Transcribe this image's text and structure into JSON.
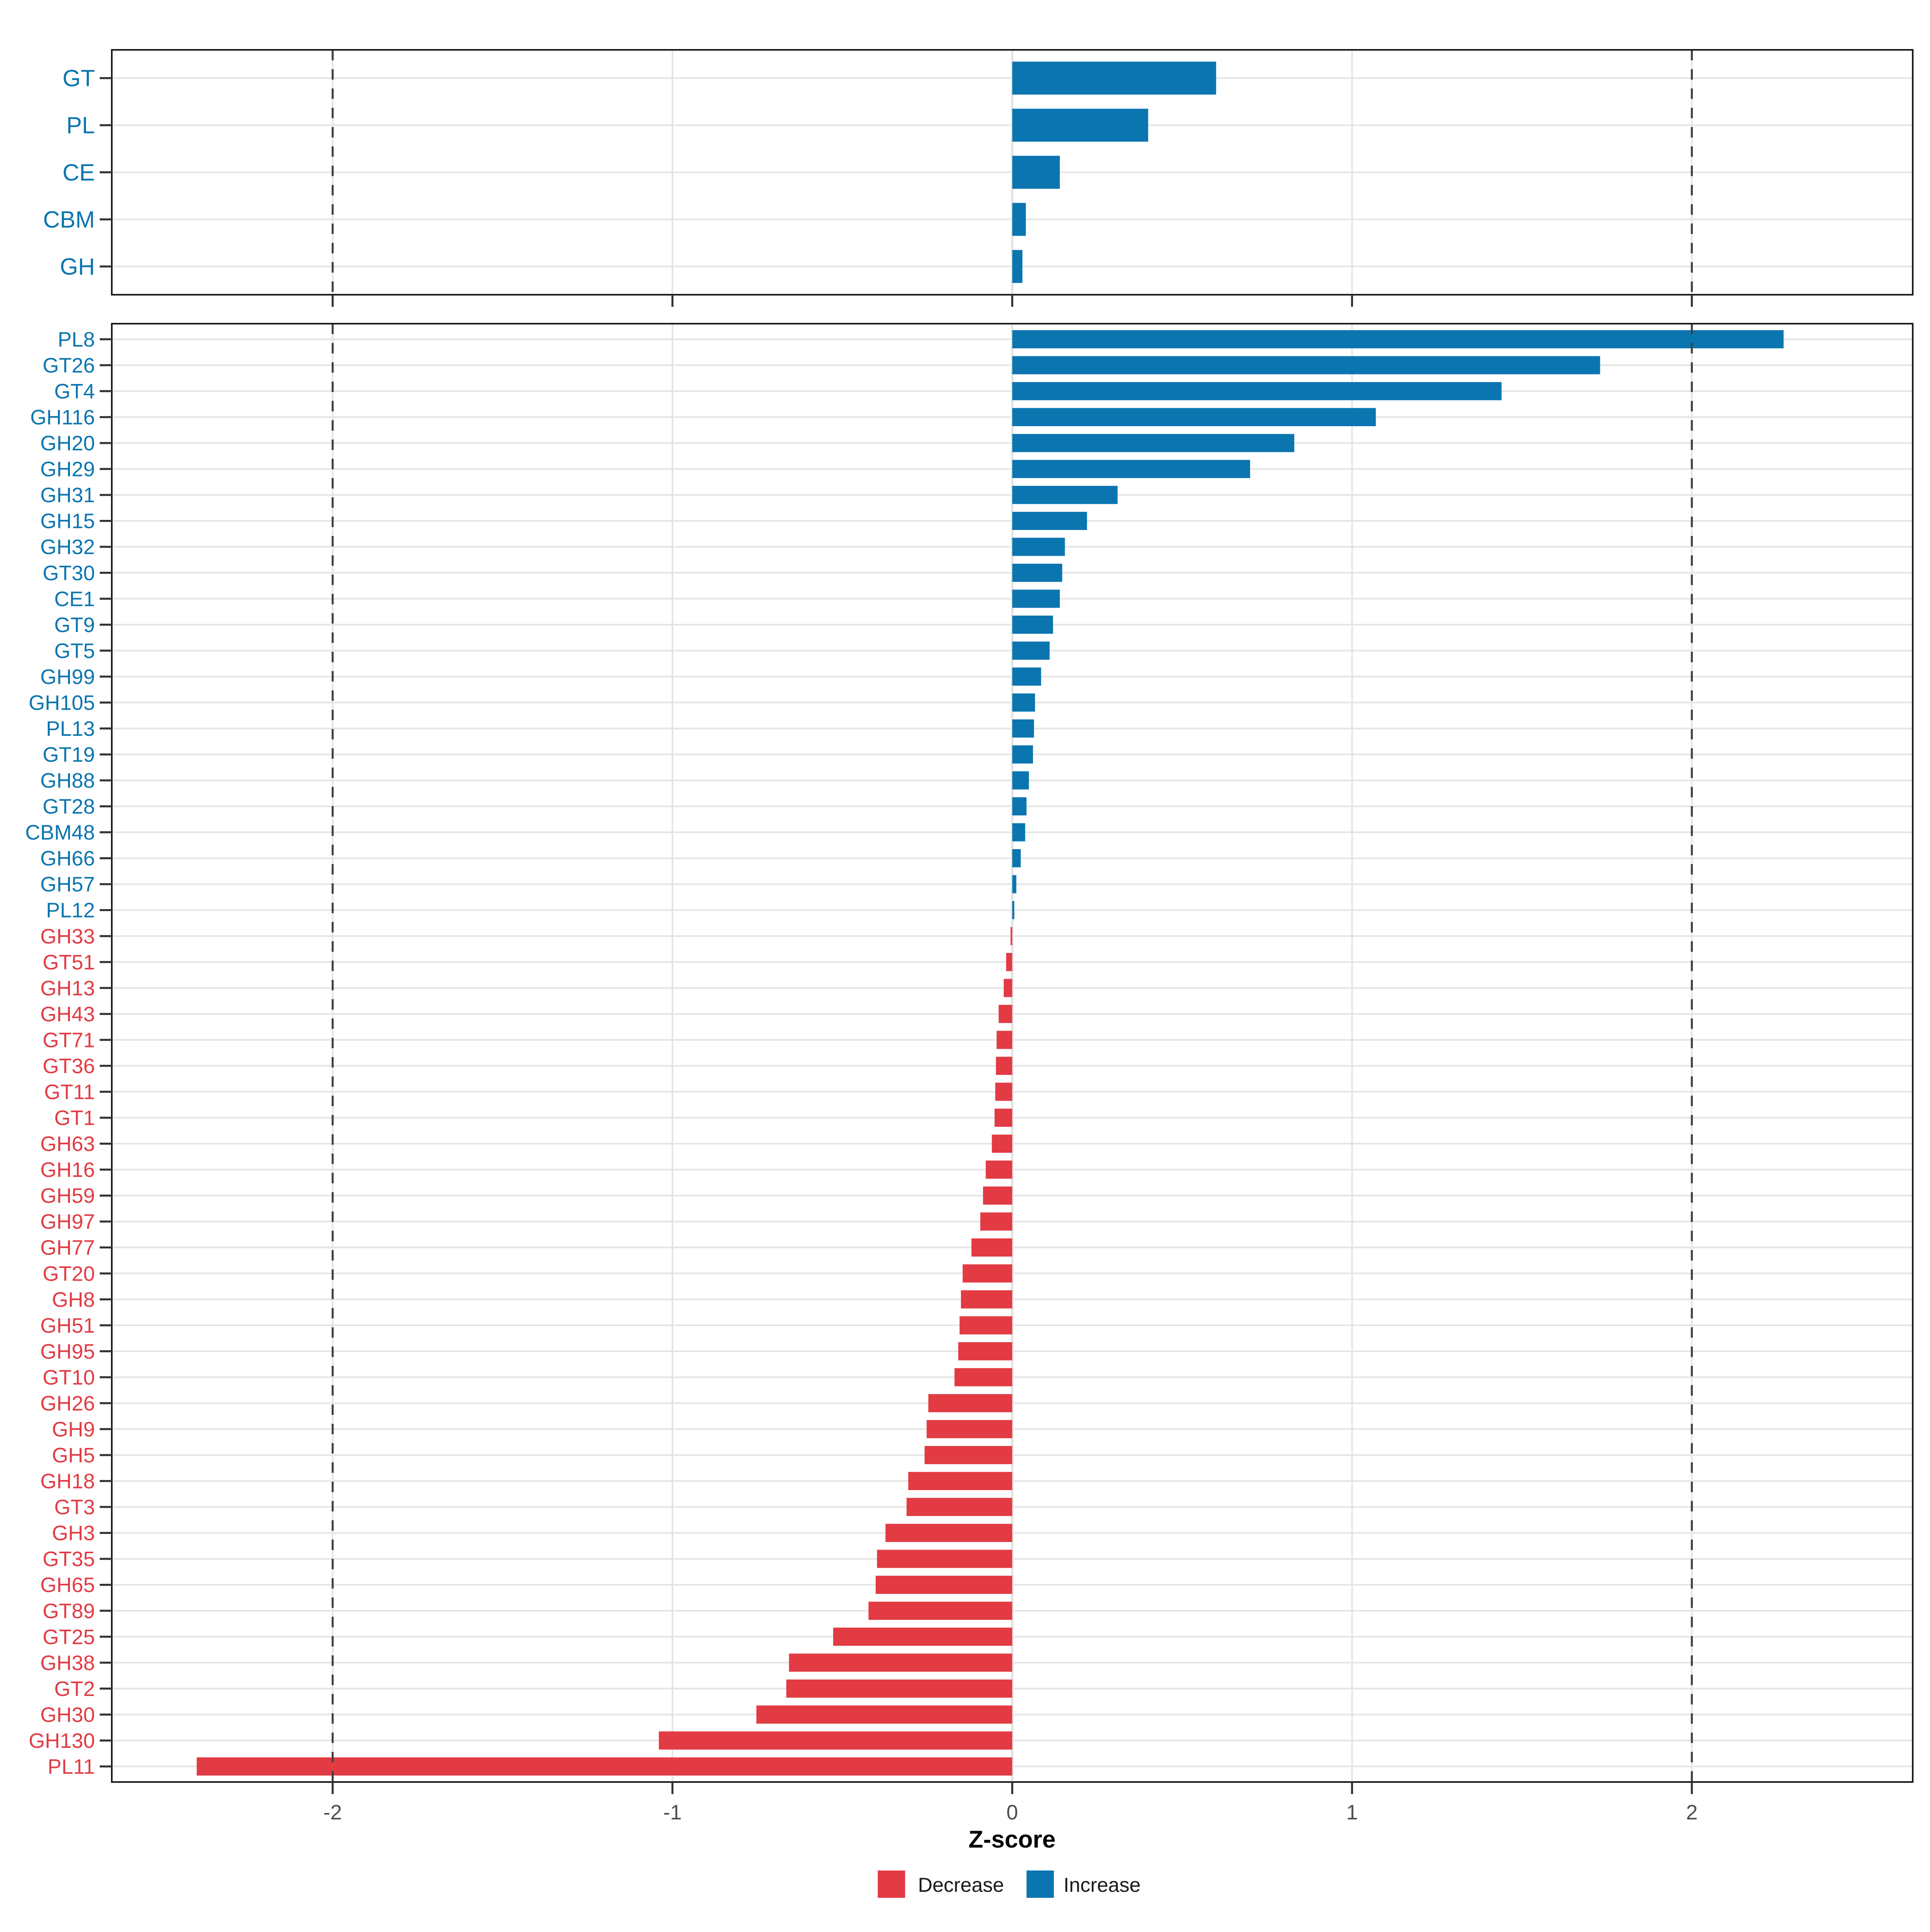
{
  "figure": {
    "x_axis_title": "Z-score",
    "x_ticks": [
      {
        "value": -2,
        "label": "-2"
      },
      {
        "value": -1,
        "label": "-1"
      },
      {
        "value": 0,
        "label": "0"
      },
      {
        "value": 1,
        "label": "1"
      },
      {
        "value": 2,
        "label": "2"
      }
    ],
    "dashed_guides": [
      -2,
      2
    ],
    "xlim": [
      -2.65,
      2.65
    ]
  },
  "legend": {
    "items": [
      {
        "label": "Decrease",
        "color": "#e23b44",
        "direction": "decrease"
      },
      {
        "label": "Increase",
        "color": "#0b75b0",
        "direction": "increase"
      }
    ]
  },
  "colors": {
    "increase": "#0b75b0",
    "decrease": "#e23b44",
    "grid": "#e4e4e4",
    "dashed_guide": "#404040",
    "panel_border": "#1a1a1a",
    "tick": "#333333",
    "tick_text": "#4d4d4d"
  },
  "chart_data": [
    {
      "type": "bar",
      "orientation": "horizontal",
      "panel": "top",
      "title": "",
      "xlabel": "Z-score",
      "ylabel": "",
      "xlim": [
        -2.65,
        2.65
      ],
      "grid": true,
      "legend_position": "none",
      "categories": [
        "GT",
        "PL",
        "CE",
        "CBM",
        "GH"
      ],
      "values": [
        0.6,
        0.4,
        0.14,
        0.04,
        0.03
      ]
    },
    {
      "type": "bar",
      "orientation": "horizontal",
      "panel": "bottom",
      "title": "",
      "xlabel": "Z-score",
      "ylabel": "",
      "xlim": [
        -2.65,
        2.65
      ],
      "grid": true,
      "legend_position": "bottom",
      "categories": [
        "PL8",
        "GT26",
        "GT4",
        "GH116",
        "GH20",
        "GH29",
        "GH31",
        "GH15",
        "GH32",
        "GT30",
        "CE1",
        "GT9",
        "GT5",
        "GH99",
        "GH105",
        "PL13",
        "GT19",
        "GH88",
        "GT28",
        "CBM48",
        "GH66",
        "GH57",
        "PL12",
        "GH33",
        "GT51",
        "GH13",
        "GH43",
        "GT71",
        "GT36",
        "GT11",
        "GT1",
        "GH63",
        "GH16",
        "GH59",
        "GH97",
        "GH77",
        "GT20",
        "GH8",
        "GH51",
        "GH95",
        "GT10",
        "GH26",
        "GH9",
        "GH5",
        "GH18",
        "GT3",
        "GH3",
        "GT35",
        "GH65",
        "GT89",
        "GT25",
        "GH38",
        "GT2",
        "GH30",
        "GH130",
        "PL11"
      ],
      "values": [
        2.27,
        1.73,
        1.44,
        1.07,
        0.83,
        0.7,
        0.31,
        0.22,
        0.155,
        0.147,
        0.14,
        0.12,
        0.11,
        0.085,
        0.067,
        0.064,
        0.061,
        0.049,
        0.042,
        0.038,
        0.025,
        0.012,
        0.006,
        -0.005,
        -0.018,
        -0.025,
        -0.04,
        -0.046,
        -0.048,
        -0.05,
        -0.052,
        -0.06,
        -0.078,
        -0.086,
        -0.094,
        -0.12,
        -0.146,
        -0.151,
        -0.155,
        -0.159,
        -0.17,
        -0.247,
        -0.252,
        -0.258,
        -0.306,
        -0.311,
        -0.373,
        -0.398,
        -0.402,
        -0.423,
        -0.527,
        -0.657,
        -0.665,
        -0.753,
        -1.04,
        -2.4
      ]
    }
  ]
}
